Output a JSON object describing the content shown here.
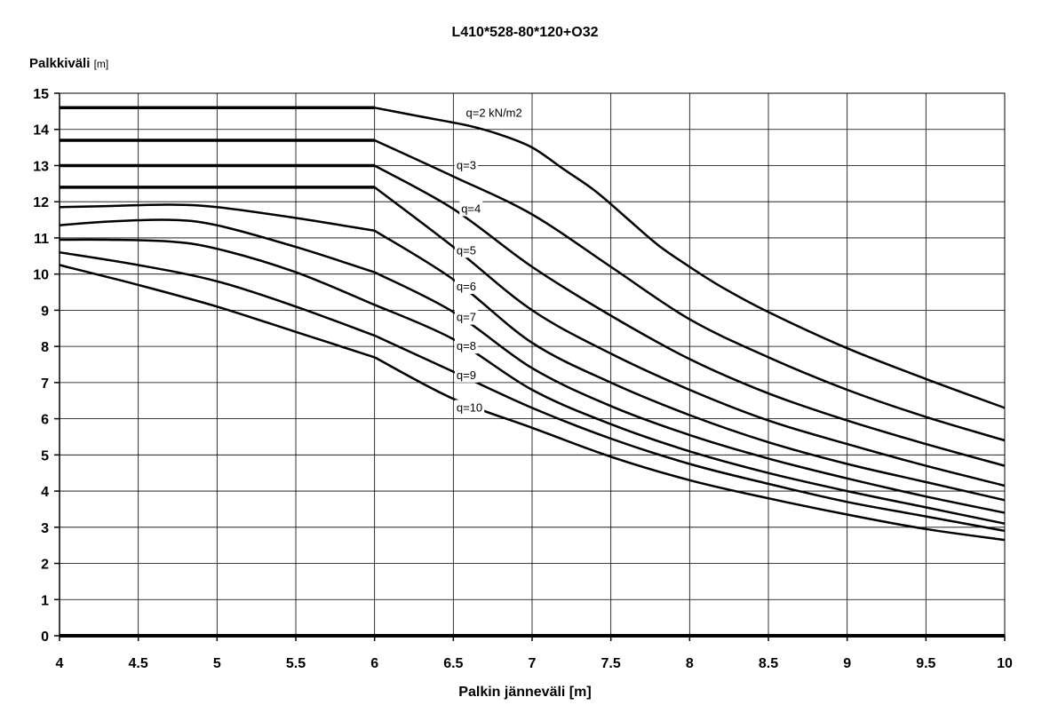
{
  "chart_data": {
    "type": "line",
    "title": "L410*528-80*120+O32",
    "ylabel": "Palkkiväli",
    "ylabel_unit": "[m]",
    "xlabel": "Palkin jänneväli [m]",
    "xlim": [
      4,
      10
    ],
    "ylim": [
      0,
      15
    ],
    "x_ticks": [
      4,
      4.5,
      5,
      5.5,
      6,
      6.5,
      7,
      7.5,
      8,
      8.5,
      9,
      9.5,
      10
    ],
    "x_tick_labels": [
      "4",
      "4.5",
      "5",
      "5.5",
      "6",
      "6.5",
      "7",
      "7.5",
      "8",
      "8.5",
      "9",
      "9.5",
      "10"
    ],
    "y_ticks": [
      0,
      1,
      2,
      3,
      4,
      5,
      6,
      7,
      8,
      9,
      10,
      11,
      12,
      13,
      14,
      15
    ],
    "y_tick_labels": [
      "0",
      "1",
      "2",
      "3",
      "4",
      "5",
      "6",
      "7",
      "8",
      "9",
      "10",
      "11",
      "12",
      "13",
      "14",
      "15"
    ],
    "grid": true,
    "legend": "none",
    "series": [
      {
        "name": "q=2 kN/m2",
        "x": [
          4,
          6,
          6.3,
          6.6,
          6.8,
          7.0,
          7.2,
          7.4,
          7.6,
          7.8,
          8.0,
          8.2,
          8.5,
          9.0,
          9.5,
          10
        ],
        "y": [
          14.6,
          14.6,
          14.35,
          14.1,
          13.85,
          13.5,
          12.9,
          12.3,
          11.55,
          10.8,
          10.2,
          9.65,
          8.95,
          7.95,
          7.1,
          6.3
        ],
        "label": {
          "text": "q=2 kN/m2",
          "x": 6.58,
          "y": 14.35
        }
      },
      {
        "name": "q=3",
        "x": [
          4,
          6,
          6.5,
          7,
          7.5,
          8,
          8.5,
          9,
          9.5,
          10
        ],
        "y": [
          13.7,
          13.7,
          12.7,
          11.65,
          10.2,
          8.75,
          7.7,
          6.8,
          6.05,
          5.4
        ],
        "label": {
          "text": "q=3",
          "x": 6.52,
          "y": 12.9
        }
      },
      {
        "name": "q=4",
        "x": [
          4,
          6,
          6.5,
          7,
          7.5,
          8,
          8.5,
          9,
          9.5,
          10
        ],
        "y": [
          13.0,
          13.0,
          11.8,
          10.2,
          8.85,
          7.65,
          6.7,
          5.95,
          5.3,
          4.7
        ],
        "label": {
          "text": "q=4",
          "x": 6.55,
          "y": 11.7
        }
      },
      {
        "name": "q=5",
        "x": [
          4,
          6,
          6.5,
          7,
          7.5,
          8,
          8.5,
          9,
          9.5,
          10
        ],
        "y": [
          12.4,
          12.4,
          10.75,
          9.0,
          7.8,
          6.8,
          5.95,
          5.3,
          4.7,
          4.15
        ],
        "label": {
          "text": "q=5",
          "x": 6.52,
          "y": 10.55
        }
      },
      {
        "name": "q=6",
        "x": [
          4,
          4.3,
          4.7,
          5.0,
          5.5,
          6,
          6.5,
          7,
          7.5,
          8,
          8.5,
          9,
          9.5,
          10
        ],
        "y": [
          11.85,
          11.88,
          11.92,
          11.85,
          11.55,
          11.2,
          9.85,
          8.1,
          7.0,
          6.1,
          5.35,
          4.75,
          4.25,
          3.75
        ],
        "label": {
          "text": "q=6",
          "x": 6.52,
          "y": 9.55
        }
      },
      {
        "name": "q=7",
        "x": [
          4,
          4.3,
          4.7,
          5.0,
          5.5,
          6,
          6.5,
          7,
          7.5,
          8,
          8.5,
          9,
          9.5,
          10
        ],
        "y": [
          11.35,
          11.45,
          11.5,
          11.35,
          10.75,
          10.05,
          8.95,
          7.4,
          6.35,
          5.55,
          4.9,
          4.35,
          3.85,
          3.4
        ],
        "label": {
          "text": "q=7",
          "x": 6.52,
          "y": 8.7
        }
      },
      {
        "name": "q=8",
        "x": [
          4,
          4.3,
          4.7,
          5.0,
          5.5,
          6,
          6.5,
          7,
          7.5,
          8,
          8.5,
          9,
          9.5,
          10
        ],
        "y": [
          10.95,
          10.95,
          10.9,
          10.7,
          10.05,
          9.15,
          8.2,
          6.8,
          5.85,
          5.1,
          4.5,
          4.0,
          3.55,
          3.1
        ],
        "label": {
          "text": "q=8",
          "x": 6.52,
          "y": 7.9
        }
      },
      {
        "name": "q=9",
        "x": [
          4,
          4.5,
          5.0,
          5.5,
          6,
          6.5,
          7,
          7.5,
          8,
          8.5,
          9,
          9.5,
          10
        ],
        "y": [
          10.6,
          10.25,
          9.8,
          9.1,
          8.3,
          7.3,
          6.3,
          5.45,
          4.75,
          4.2,
          3.7,
          3.3,
          2.9
        ],
        "label": {
          "text": "q=9",
          "x": 6.52,
          "y": 7.1
        }
      },
      {
        "name": "q=10",
        "x": [
          4,
          4.5,
          5.0,
          5.5,
          6,
          6.5,
          7,
          7.5,
          8,
          8.5,
          9,
          9.5,
          10
        ],
        "y": [
          10.25,
          9.7,
          9.1,
          8.4,
          7.7,
          6.55,
          5.75,
          4.95,
          4.3,
          3.8,
          3.35,
          2.95,
          2.65
        ],
        "label": {
          "text": "q=10",
          "x": 6.52,
          "y": 6.2
        }
      }
    ]
  }
}
